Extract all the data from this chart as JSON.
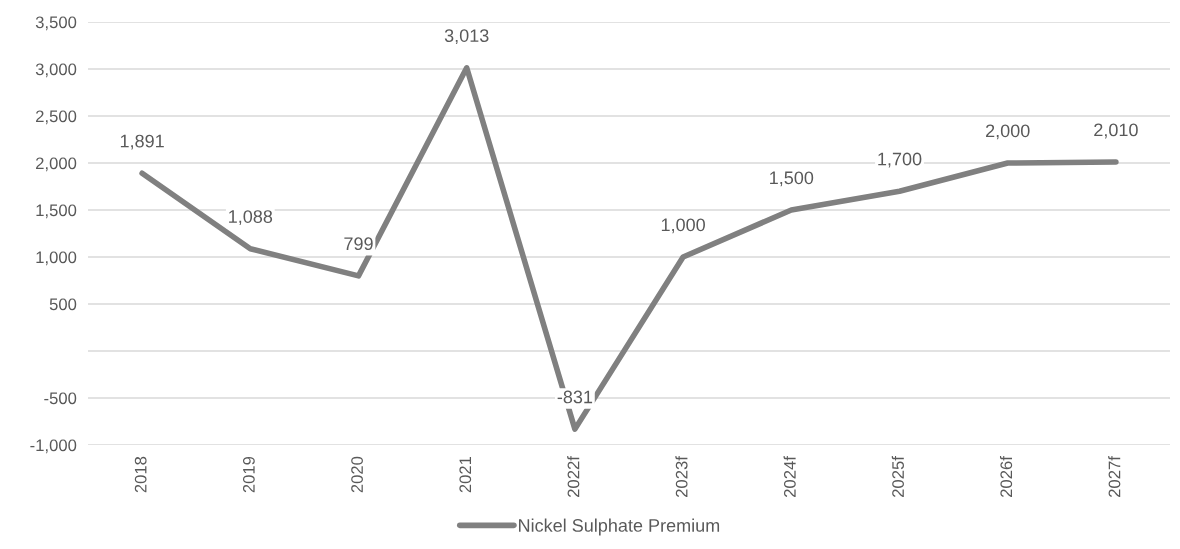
{
  "chart_data": {
    "type": "line",
    "categories": [
      "2018",
      "2019",
      "2020",
      "2021",
      "2022f",
      "2023f",
      "2024f",
      "2025f",
      "2026f",
      "2027f"
    ],
    "series": [
      {
        "name": "Nickel Sulphate Premium",
        "color": "#808080",
        "values": [
          1891,
          1088,
          799,
          3013,
          -831,
          1000,
          1500,
          1700,
          2000,
          2010
        ]
      }
    ],
    "ylim": [
      -1000,
      3500
    ],
    "yticks": [
      {
        "value": -1000,
        "label": "-1,000"
      },
      {
        "value": -500,
        "label": "-500"
      },
      {
        "value": 0,
        "label": null
      },
      {
        "value": 500,
        "label": "500"
      },
      {
        "value": 1000,
        "label": "1,000"
      },
      {
        "value": 1500,
        "label": "1,500"
      },
      {
        "value": 2000,
        "label": "2,000"
      },
      {
        "value": 2500,
        "label": "2,500"
      },
      {
        "value": 3000,
        "label": "3,000"
      },
      {
        "value": 3500,
        "label": "3,500"
      }
    ],
    "value_labels": [
      "1,891",
      "1,088",
      "799",
      "3,013",
      "-831",
      "1,000",
      "1,500",
      "1,700",
      "2,000",
      "2,010"
    ],
    "grid": "y",
    "legend": "bottom",
    "marker": "none",
    "line_style": "solid"
  }
}
